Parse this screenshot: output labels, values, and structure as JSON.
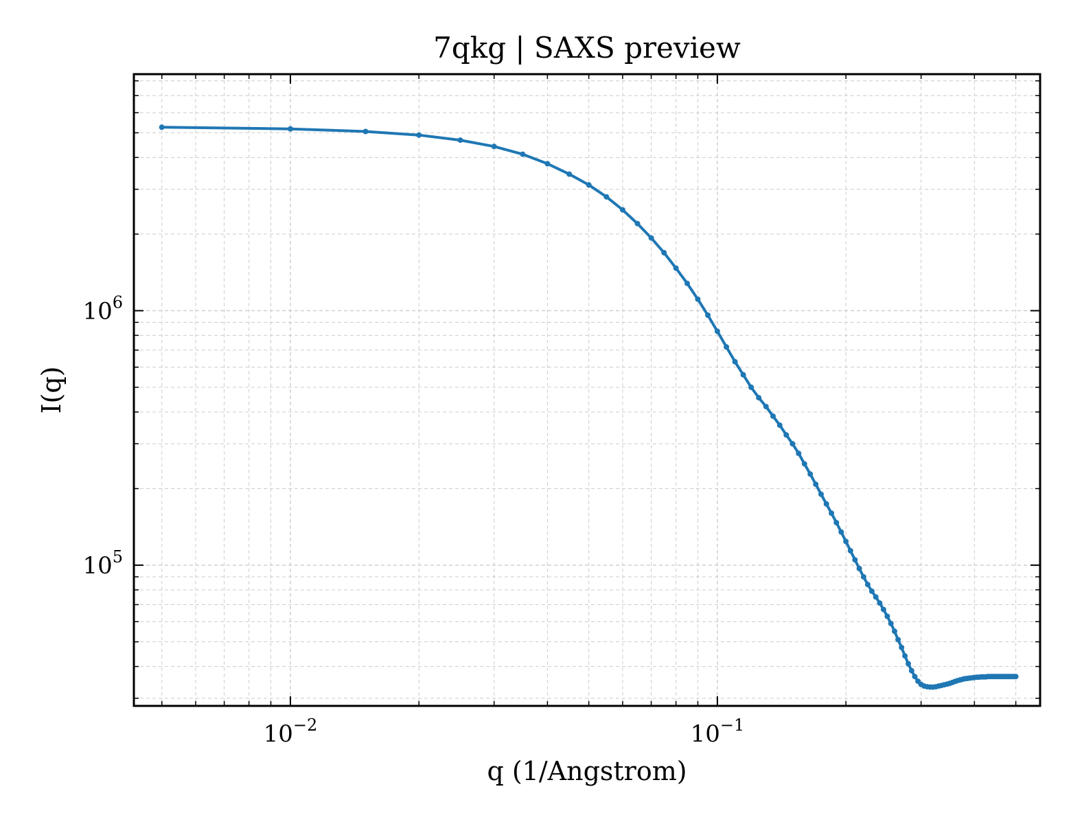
{
  "chart_data": {
    "type": "line",
    "title": "7qkg | SAXS preview",
    "xlabel": "q (1/Angstrom)",
    "ylabel": "I(q)",
    "xscale": "log",
    "yscale": "log",
    "xlim": [
      0.0043,
      0.57
    ],
    "ylim": [
      28000,
      8500000
    ],
    "grid": true,
    "x_ticks": [
      {
        "value": 0.01,
        "base": "10",
        "exp": "−2"
      },
      {
        "value": 0.1,
        "base": "10",
        "exp": "−1"
      }
    ],
    "y_ticks": [
      {
        "value": 100000,
        "base": "10",
        "exp": "5"
      },
      {
        "value": 1000000,
        "base": "10",
        "exp": "6"
      }
    ],
    "color": "#1f77b4",
    "series": [
      {
        "x": [
          0.005,
          0.01,
          0.015,
          0.02,
          0.025,
          0.03,
          0.035,
          0.04,
          0.045,
          0.05,
          0.055,
          0.06,
          0.065,
          0.07,
          0.075,
          0.08,
          0.085,
          0.09,
          0.095,
          0.1,
          0.105,
          0.11,
          0.115,
          0.12,
          0.125,
          0.13,
          0.135,
          0.14,
          0.145,
          0.15,
          0.155,
          0.16,
          0.165,
          0.17,
          0.175,
          0.18,
          0.185,
          0.19,
          0.195,
          0.2,
          0.205,
          0.21,
          0.215,
          0.22,
          0.225,
          0.23,
          0.235,
          0.24,
          0.245,
          0.25,
          0.255,
          0.26,
          0.265,
          0.27,
          0.275,
          0.28,
          0.285,
          0.29,
          0.295,
          0.3,
          0.305,
          0.31,
          0.315,
          0.32,
          0.325,
          0.33,
          0.335,
          0.34,
          0.345,
          0.35,
          0.355,
          0.36,
          0.365,
          0.37,
          0.375,
          0.38,
          0.385,
          0.39,
          0.395,
          0.4,
          0.405,
          0.41,
          0.415,
          0.42,
          0.425,
          0.43,
          0.435,
          0.44,
          0.445,
          0.45,
          0.455,
          0.46,
          0.465,
          0.47,
          0.475,
          0.48,
          0.485,
          0.49,
          0.495,
          0.5
        ],
        "y": [
          5260000,
          5180000,
          5060000,
          4900000,
          4680000,
          4420000,
          4120000,
          3780000,
          3440000,
          3120000,
          2800000,
          2490000,
          2200000,
          1930000,
          1690000,
          1470000,
          1280000,
          1110000,
          960000,
          830000,
          720000,
          630000,
          560000,
          500000,
          455000,
          420000,
          385000,
          355000,
          325000,
          300000,
          275000,
          250000,
          228000,
          208000,
          190000,
          174000,
          160000,
          147000,
          135000,
          124000,
          114000,
          105000,
          97000,
          90000,
          84000,
          79000,
          75000,
          71000,
          67000,
          63000,
          59000,
          55000,
          51000,
          47500,
          44000,
          41000,
          38500,
          36500,
          35000,
          34000,
          33500,
          33300,
          33200,
          33200,
          33300,
          33500,
          33700,
          33900,
          34100,
          34300,
          34600,
          34900,
          35200,
          35400,
          35600,
          35800,
          35900,
          36000,
          36100,
          36200,
          36300,
          36300,
          36400,
          36400,
          36400,
          36500,
          36500,
          36500,
          36500,
          36500,
          36500,
          36500,
          36500,
          36500,
          36500,
          36500,
          36500,
          36500,
          36500,
          36500
        ]
      }
    ]
  }
}
